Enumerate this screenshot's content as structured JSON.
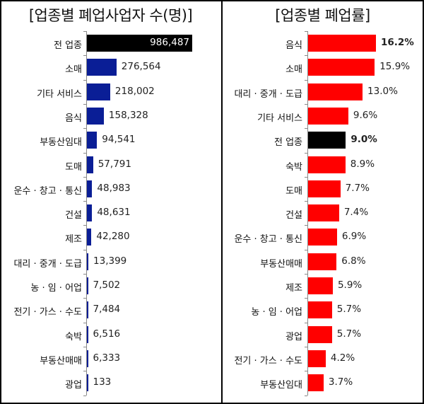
{
  "chart_data": [
    {
      "type": "bar",
      "orientation": "horizontal",
      "title": "[업종별 폐업사업자 수(명)]",
      "categories": [
        "전 업종",
        "소매",
        "기타 서비스",
        "음식",
        "부동산임대",
        "도매",
        "운수 · 창고 · 통신",
        "건설",
        "제조",
        "대리 · 중개 · 도급",
        "농 · 임 · 어업",
        "전기 · 가스 · 수도",
        "숙박",
        "부동산매매",
        "광업"
      ],
      "values": [
        986487,
        276564,
        218002,
        158328,
        94541,
        57791,
        48983,
        48631,
        42280,
        13399,
        7502,
        7484,
        6516,
        6333,
        133
      ],
      "labels": [
        "986,487",
        "276,564",
        "218,002",
        "158,328",
        "94,541",
        "57,791",
        "48,983",
        "48,631",
        "42,280",
        "13,399",
        "7,502",
        "7,484",
        "6,516",
        "6,333",
        "133"
      ],
      "colors": {
        "highlight": "#000000",
        "default": "#0a1e96"
      },
      "highlight_index": 0,
      "xlabel": "",
      "ylabel": ""
    },
    {
      "type": "bar",
      "orientation": "horizontal",
      "title": "[업종별 폐업률]",
      "categories": [
        "음식",
        "소매",
        "대리 · 중개 · 도급",
        "기타 서비스",
        "전 업종",
        "숙박",
        "도매",
        "건설",
        "운수 · 창고 · 통신",
        "부동산매매",
        "제조",
        "농 · 임 · 어업",
        "광업",
        "전기 · 가스 · 수도",
        "부동산임대"
      ],
      "values": [
        16.2,
        15.9,
        13.0,
        9.6,
        9.0,
        8.9,
        7.7,
        7.4,
        6.9,
        6.8,
        5.9,
        5.7,
        5.7,
        4.2,
        3.7
      ],
      "labels": [
        "16.2%",
        "15.9%",
        "13.0%",
        "9.6%",
        "9.0%",
        "8.9%",
        "7.7%",
        "7.4%",
        "6.9%",
        "6.8%",
        "5.9%",
        "5.7%",
        "5.7%",
        "4.2%",
        "3.7%"
      ],
      "colors": {
        "highlight": "#000000",
        "default": "#ff0000"
      },
      "highlight_index": 4,
      "unit": "%",
      "xlabel": "",
      "ylabel": ""
    }
  ]
}
